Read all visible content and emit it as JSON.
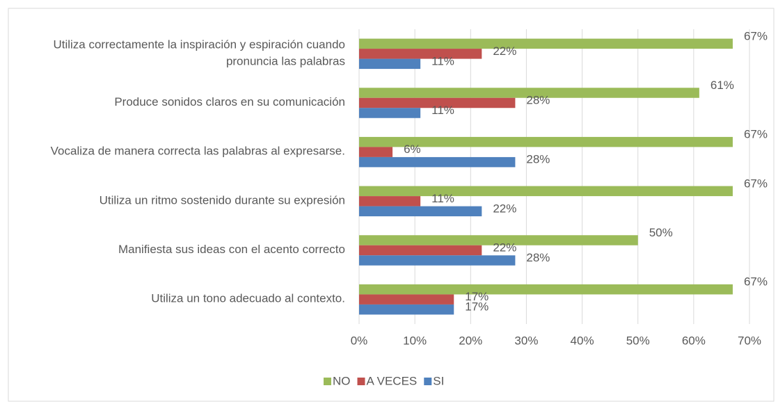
{
  "chart_data": {
    "type": "hbar",
    "categories": [
      "Utiliza correctamente la inspiración y espiración cuando pronuncia las palabras",
      "Produce sonidos claros en su comunicación",
      "Vocaliza de manera correcta las palabras al expresarse.",
      "Utiliza un ritmo sostenido durante su expresión",
      "Manifiesta sus ideas con el acento correcto",
      "Utiliza un tono adecuado al contexto."
    ],
    "series": [
      {
        "name": "NO",
        "color": "#9bbb59",
        "values": [
          67,
          61,
          67,
          67,
          50,
          67
        ],
        "value_labels": [
          "67%",
          "61%",
          "67%",
          "67%",
          "50%",
          "67%"
        ]
      },
      {
        "name": "A VECES",
        "color": "#c0504d",
        "values": [
          22,
          28,
          6,
          11,
          22,
          17
        ],
        "value_labels": [
          "22%",
          "28%",
          "6%",
          "11%",
          "22%",
          "17%"
        ]
      },
      {
        "name": "SI",
        "color": "#4f81bd",
        "values": [
          11,
          11,
          28,
          22,
          28,
          17
        ],
        "value_labels": [
          "11%",
          "11%",
          "28%",
          "22%",
          "28%",
          "17%"
        ]
      }
    ],
    "xlim": [
      0,
      70
    ],
    "xticks": [
      {
        "value": 0,
        "label": "0%"
      },
      {
        "value": 10,
        "label": "10%"
      },
      {
        "value": 20,
        "label": "20%"
      },
      {
        "value": 30,
        "label": "30%"
      },
      {
        "value": 40,
        "label": "40%"
      },
      {
        "value": 50,
        "label": "50%"
      },
      {
        "value": 60,
        "label": "60%"
      },
      {
        "value": 70,
        "label": "70%"
      }
    ],
    "grid": true,
    "legend": "bottom"
  }
}
